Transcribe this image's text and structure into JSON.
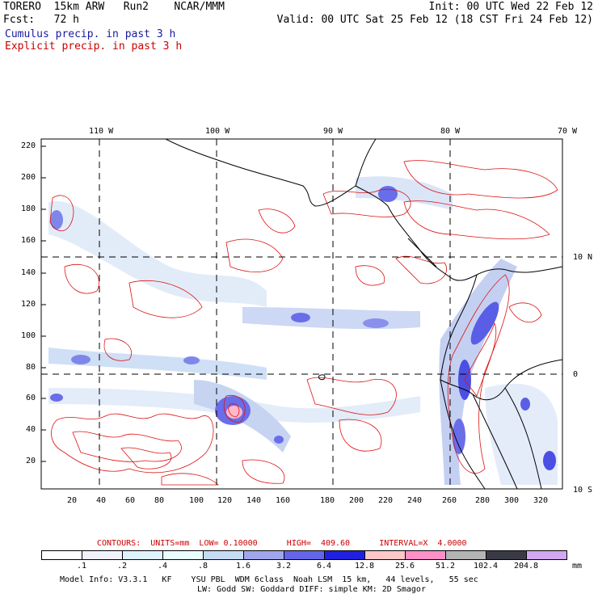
{
  "header": {
    "model": "TORERO  15km ARW   Run2    NCAR/MMM",
    "init": "Init: 00 UTC Wed 22 Feb 12",
    "fcst": "Fcst:   72 h",
    "valid": "Valid: 00 UTC Sat 25 Feb 12 (18 CST Fri 24 Feb 12)",
    "cumulus": "Cumulus precip. in past 3 h",
    "explicit": "Explicit precip. in past 3 h"
  },
  "axes": {
    "top_lon": [
      "110 W",
      "100 W",
      "90 W",
      "80 W",
      "70 W"
    ],
    "right_lat": [
      "10 N",
      "0",
      "10 S"
    ],
    "left_ticks": [
      "220",
      "200",
      "180",
      "160",
      "140",
      "120",
      "100",
      "80",
      "60",
      "40",
      "20"
    ],
    "bottom_ticks": [
      "20",
      "40",
      "60",
      "80",
      "100",
      "120",
      "140",
      "160",
      "180",
      "200",
      "220",
      "240",
      "260",
      "280",
      "300",
      "320"
    ]
  },
  "contours": {
    "label": "CONTOURS:  UNITS=mm  LOW= 0.10000      HIGH=  409.60      INTERVAL=X  4.0000"
  },
  "colorbar": {
    "labels": [
      ".1",
      ".2",
      ".4",
      ".8",
      "1.6",
      "3.2",
      "6.4",
      "12.8",
      "25.6",
      "51.2",
      "102.4",
      "204.8"
    ],
    "unit": "mm",
    "colors": [
      "#ffffff",
      "#f2f2ff",
      "#dff3ff",
      "#e9ffff",
      "#c6dcf5",
      "#a0a6ee",
      "#6465e8",
      "#2020e0",
      "#ffc8c8",
      "#ff90c8",
      "#b4b4b4",
      "#3a3a46",
      "#d2a8f0"
    ]
  },
  "footer": {
    "line1": "Model Info: V3.3.1   KF    YSU PBL  WDM 6class  Noah LSM  15 km,   44 levels,   55 sec",
    "line2": "LW: Godd SW: Goddard DIFF: simple KM: 2D Smagor"
  }
}
